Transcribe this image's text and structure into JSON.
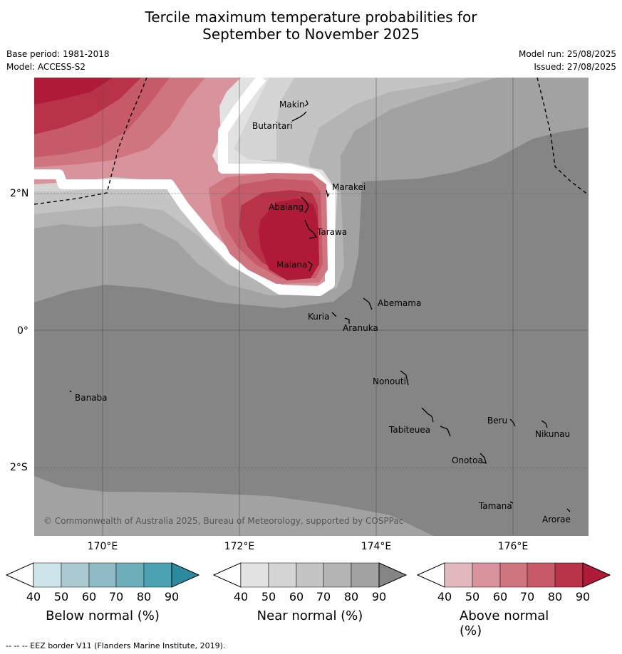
{
  "title_line1": "Tercile maximum temperature probabilities for",
  "title_line2": "September to November 2025",
  "base_period": "Base period: 1981-2018",
  "model": "Model: ACCESS-S2",
  "model_run": "Model run: 25/08/2025",
  "issued": "Issued: 27/08/2025",
  "copyright": "© Commonwealth of Australia 2025, Bureau of Meteorology, supported by COSPPac",
  "footer": "--  --  -- EEZ border V11 (Flanders Marine Institute, 2019).",
  "lon_labels": [
    "170°E",
    "172°E",
    "174°E",
    "176°E"
  ],
  "lat_labels": [
    "2°N",
    "0°",
    "2°S"
  ],
  "islands": [
    "Makin",
    "Butaritari",
    "Marakei",
    "Abaiang",
    "Tarawa",
    "Maiana",
    "Abemama",
    "Kuria",
    "Aranuka",
    "Banaba",
    "Nonouti",
    "Tabiteuea",
    "Beru",
    "Nikunau",
    "Onotoa",
    "Tamana",
    "Arorae"
  ],
  "colorbars": [
    {
      "label": "Below normal (%)",
      "ticks": [
        "40",
        "50",
        "60",
        "70",
        "80",
        "90"
      ],
      "colors": [
        "#ffffff",
        "#cde3ea",
        "#aac9d1",
        "#8ebbc6",
        "#6eaebb",
        "#4ca2b0",
        "#2a8b9e"
      ]
    },
    {
      "label": "Near normal (%)",
      "ticks": [
        "40",
        "50",
        "60",
        "70",
        "80",
        "90"
      ],
      "colors": [
        "#ffffff",
        "#e2e2e2",
        "#d4d4d4",
        "#c4c4c4",
        "#b4b4b4",
        "#a2a2a2",
        "#858585"
      ]
    },
    {
      "label": "Above normal (%)",
      "ticks": [
        "40",
        "50",
        "60",
        "70",
        "80",
        "90"
      ],
      "colors": [
        "#ffffff",
        "#e2b8bf",
        "#d8939c",
        "#cf7580",
        "#c75a68",
        "#b83348",
        "#ae1a38"
      ]
    }
  ]
}
